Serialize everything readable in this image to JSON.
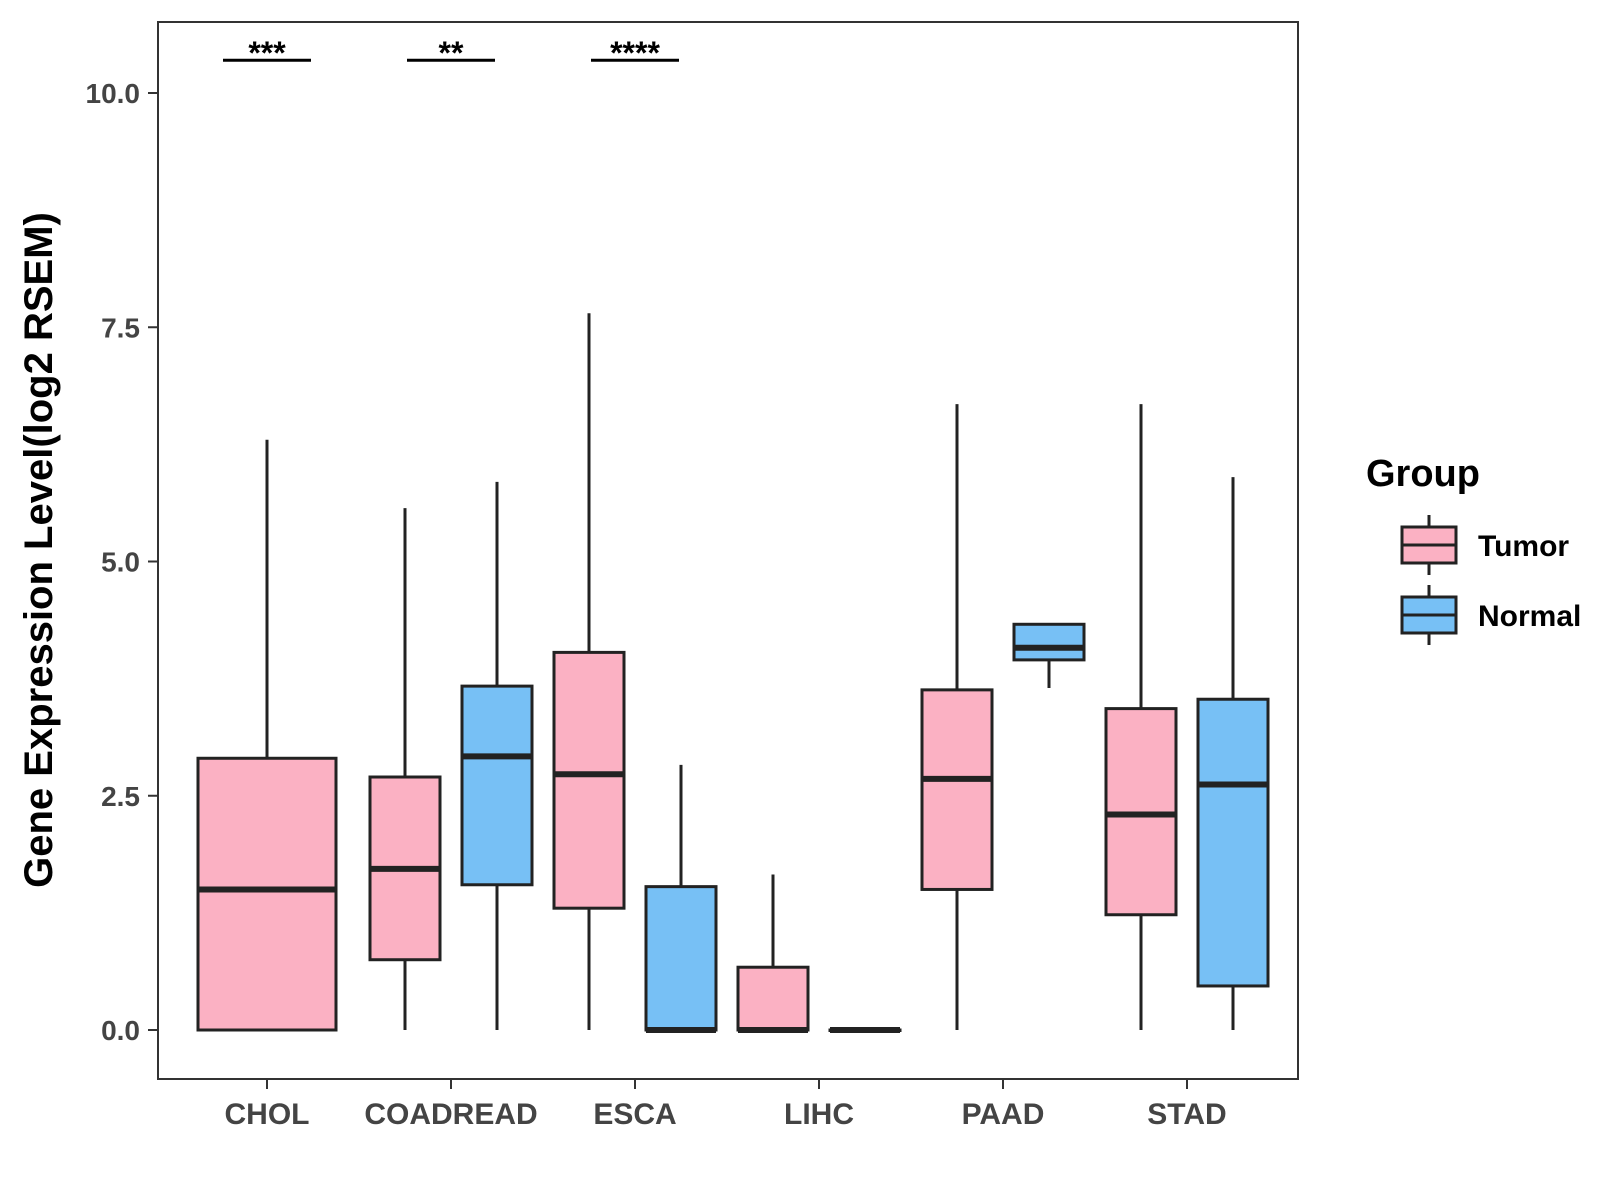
{
  "chart_data": {
    "type": "boxplot",
    "ylabel": "Gene Expression Level(log2 RSEM)",
    "xlabel": "",
    "ylim": [
      -0.5,
      10.75
    ],
    "yticks": [
      "0.0",
      "2.5",
      "5.0",
      "7.5",
      "10.0"
    ],
    "ytick_values": [
      0,
      2.5,
      5,
      7.5,
      10
    ],
    "categories": [
      "CHOL",
      "COADREAD",
      "ESCA",
      "LIHC",
      "PAAD",
      "STAD"
    ],
    "series": [
      {
        "name": "Tumor",
        "color": "#FBB1C3",
        "boxes": [
          {
            "category": "CHOL",
            "min": 0,
            "q1": 0,
            "median": 1.5,
            "q3": 2.9,
            "max": 6.3,
            "wide": true
          },
          {
            "category": "COADREAD",
            "min": 0,
            "q1": 0.75,
            "median": 1.72,
            "q3": 2.7,
            "max": 5.57
          },
          {
            "category": "ESCA",
            "min": 0,
            "q1": 1.3,
            "median": 2.73,
            "q3": 4.03,
            "max": 7.65
          },
          {
            "category": "LIHC",
            "min": 0,
            "q1": 0,
            "median": 0,
            "q3": 0.67,
            "max": 1.66
          },
          {
            "category": "PAAD",
            "min": 0,
            "q1": 1.5,
            "median": 2.68,
            "q3": 3.63,
            "max": 6.68
          },
          {
            "category": "STAD",
            "min": 0,
            "q1": 1.23,
            "median": 2.3,
            "q3": 3.43,
            "max": 6.68
          }
        ]
      },
      {
        "name": "Normal",
        "color": "#77C0F5",
        "boxes": [
          {
            "category": "COADREAD",
            "min": 0,
            "q1": 1.55,
            "median": 2.92,
            "q3": 3.67,
            "max": 5.85
          },
          {
            "category": "ESCA",
            "min": 0,
            "q1": 0,
            "median": 0,
            "q3": 1.53,
            "max": 2.83
          },
          {
            "category": "LIHC",
            "min": 0,
            "q1": 0,
            "median": 0,
            "q3": 0,
            "max": 0
          },
          {
            "category": "PAAD",
            "min": 3.65,
            "q1": 3.95,
            "median": 4.08,
            "q3": 4.33,
            "max": 4.33
          },
          {
            "category": "STAD",
            "min": 0,
            "q1": 0.47,
            "median": 2.62,
            "q3": 3.53,
            "max": 5.9
          }
        ]
      }
    ],
    "annotations": [
      {
        "category": "CHOL",
        "text": "***",
        "y": 10.35
      },
      {
        "category": "COADREAD",
        "text": "**",
        "y": 10.35
      },
      {
        "category": "ESCA",
        "text": "****",
        "y": 10.35
      }
    ],
    "legend": {
      "title": "Group",
      "position": "right",
      "entries": [
        "Tumor",
        "Normal"
      ]
    }
  }
}
